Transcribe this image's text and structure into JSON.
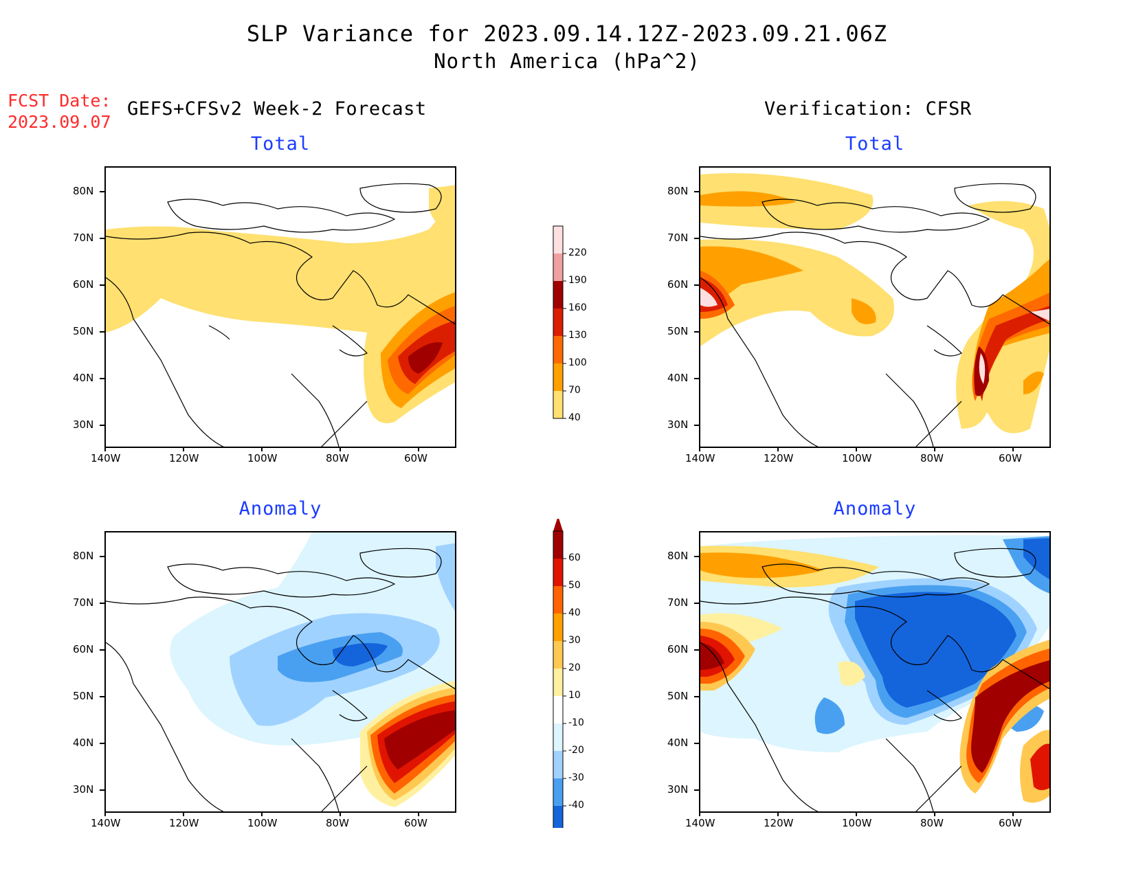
{
  "header": {
    "title": "SLP Variance for 2023.09.14.12Z-2023.09.21.06Z",
    "subtitle": "North America (hPa^2)",
    "fcst_label": "FCST Date:",
    "fcst_date": "2023.09.07",
    "left_column_title": "GEFS+CFSv2 Week-2 Forecast",
    "right_column_title": "Verification: CFSR"
  },
  "panels": {
    "fcst_total": "Total",
    "fcst_anom": "Anomaly",
    "ver_total": "Total",
    "ver_anom": "Anomaly"
  },
  "axes": {
    "lon_labels": [
      "140W",
      "120W",
      "100W",
      "80W",
      "60W"
    ],
    "lat_labels": [
      "80N",
      "70N",
      "60N",
      "50N",
      "40N",
      "30N"
    ]
  },
  "total_colorbar": {
    "levels": [
      "220",
      "190",
      "160",
      "130",
      "100",
      "70",
      "40"
    ],
    "colors": [
      "#ffe0e0",
      "#f0a0a0",
      "#a00000",
      "#dc1e00",
      "#ff6a00",
      "#ffa000",
      "#ffe070"
    ]
  },
  "anomaly_colorbar": {
    "levels": [
      "60",
      "50",
      "40",
      "30",
      "20",
      "10",
      "-10",
      "-20",
      "-30",
      "-40"
    ],
    "colors": [
      "#a00000",
      "#e01400",
      "#ff6400",
      "#ffa000",
      "#ffc850",
      "#fff0a0",
      "#ffffff",
      "#dcf5ff",
      "#a0d2ff",
      "#4aa0f0",
      "#1464dc"
    ]
  }
}
